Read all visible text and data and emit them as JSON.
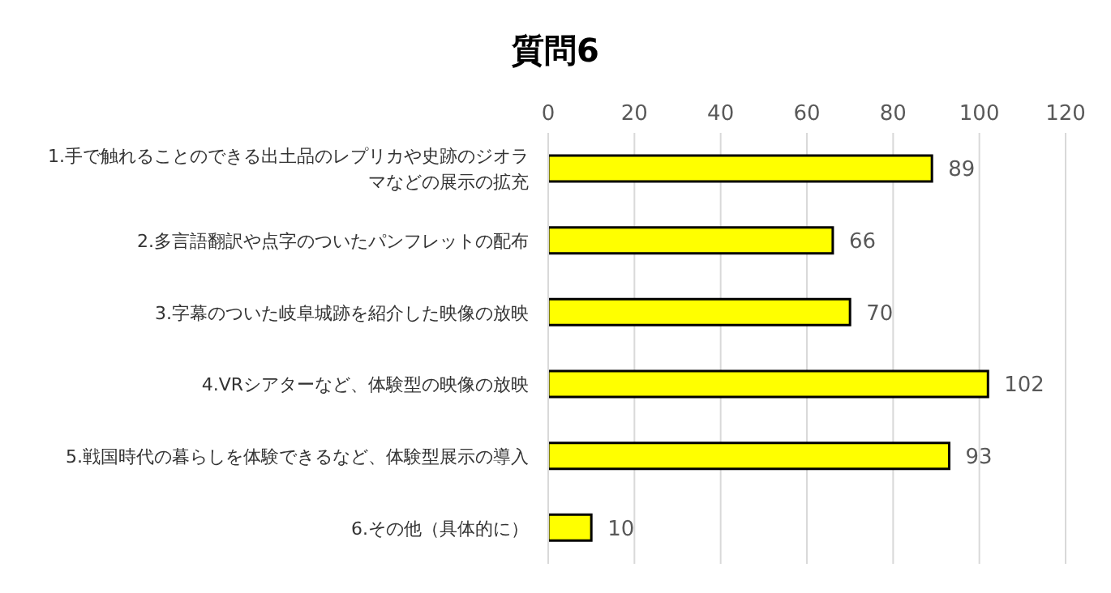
{
  "chart_data": {
    "type": "bar",
    "orientation": "horizontal",
    "title": "質問6",
    "categories": [
      "1.手で触れることのできる出土品のレプリカや史跡のジオラマなどの展示の拡充",
      "2.多言語翻訳や点字のついたパンフレットの配布",
      "3.字幕のついた岐阜城跡を紹介した映像の放映",
      "4.VRシアターなど、体験型の映像の放映",
      "5.戦国時代の暮らしを体験できるなど、体験型展示の導入",
      "6.その他（具体的に）"
    ],
    "values": [
      89,
      66,
      70,
      102,
      93,
      10
    ],
    "color": "#ffff00",
    "xlim": [
      0,
      120
    ],
    "xticks": [
      0,
      20,
      40,
      60,
      80,
      100,
      120
    ],
    "grid": "x",
    "data_labels": true
  }
}
